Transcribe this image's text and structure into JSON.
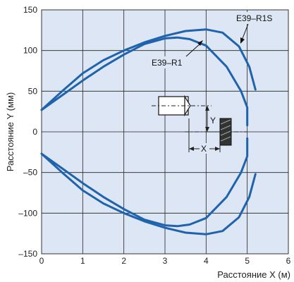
{
  "chart_data": {
    "type": "line",
    "xlabel": "Расстояние X (м)",
    "ylabel": "Расстояние Y (мм)",
    "xlim": [
      0,
      6
    ],
    "ylim": [
      -150,
      150
    ],
    "x_ticks": [
      "0",
      "1",
      "2",
      "3",
      "4",
      "5",
      "6"
    ],
    "y_ticks": [
      "150",
      "100",
      "50",
      "0",
      "–50",
      "–100",
      "–150"
    ],
    "grid": true,
    "background_color": "#dde6f4",
    "line_color": "#1f63ad",
    "series": [
      {
        "name": "E39–R1",
        "upper": [
          [
            0,
            27
          ],
          [
            0.5,
            45
          ],
          [
            1,
            63
          ],
          [
            1.5,
            80
          ],
          [
            2,
            95
          ],
          [
            2.5,
            108
          ],
          [
            3,
            115
          ],
          [
            3.3,
            116
          ],
          [
            3.6,
            114
          ],
          [
            4,
            106
          ],
          [
            4.5,
            80
          ],
          [
            4.85,
            50
          ],
          [
            5,
            30
          ],
          [
            5,
            8
          ]
        ],
        "lower": [
          [
            0,
            -27
          ],
          [
            0.5,
            -45
          ],
          [
            1,
            -63
          ],
          [
            1.5,
            -80
          ],
          [
            2,
            -95
          ],
          [
            2.5,
            -108
          ],
          [
            3,
            -115
          ],
          [
            3.3,
            -116
          ],
          [
            3.6,
            -114
          ],
          [
            4,
            -106
          ],
          [
            4.5,
            -80
          ],
          [
            4.85,
            -50
          ],
          [
            5,
            -30
          ],
          [
            5,
            -8
          ]
        ]
      },
      {
        "name": "E39–R1S",
        "upper": [
          [
            0,
            27
          ],
          [
            0.5,
            50
          ],
          [
            1,
            72
          ],
          [
            1.5,
            88
          ],
          [
            2,
            100
          ],
          [
            2.5,
            110
          ],
          [
            3,
            118
          ],
          [
            3.5,
            124
          ],
          [
            4,
            126
          ],
          [
            4.4,
            122
          ],
          [
            4.8,
            105
          ],
          [
            5.05,
            80
          ],
          [
            5.2,
            52
          ]
        ],
        "lower": [
          [
            0,
            -27
          ],
          [
            0.5,
            -50
          ],
          [
            1,
            -72
          ],
          [
            1.5,
            -88
          ],
          [
            2,
            -100
          ],
          [
            2.5,
            -110
          ],
          [
            3,
            -118
          ],
          [
            3.5,
            -124
          ],
          [
            4,
            -126
          ],
          [
            4.4,
            -122
          ],
          [
            4.8,
            -105
          ],
          [
            5.05,
            -80
          ],
          [
            5.2,
            -52
          ]
        ]
      }
    ],
    "annotations": {
      "x_marker": "X",
      "y_marker": "Y"
    }
  }
}
